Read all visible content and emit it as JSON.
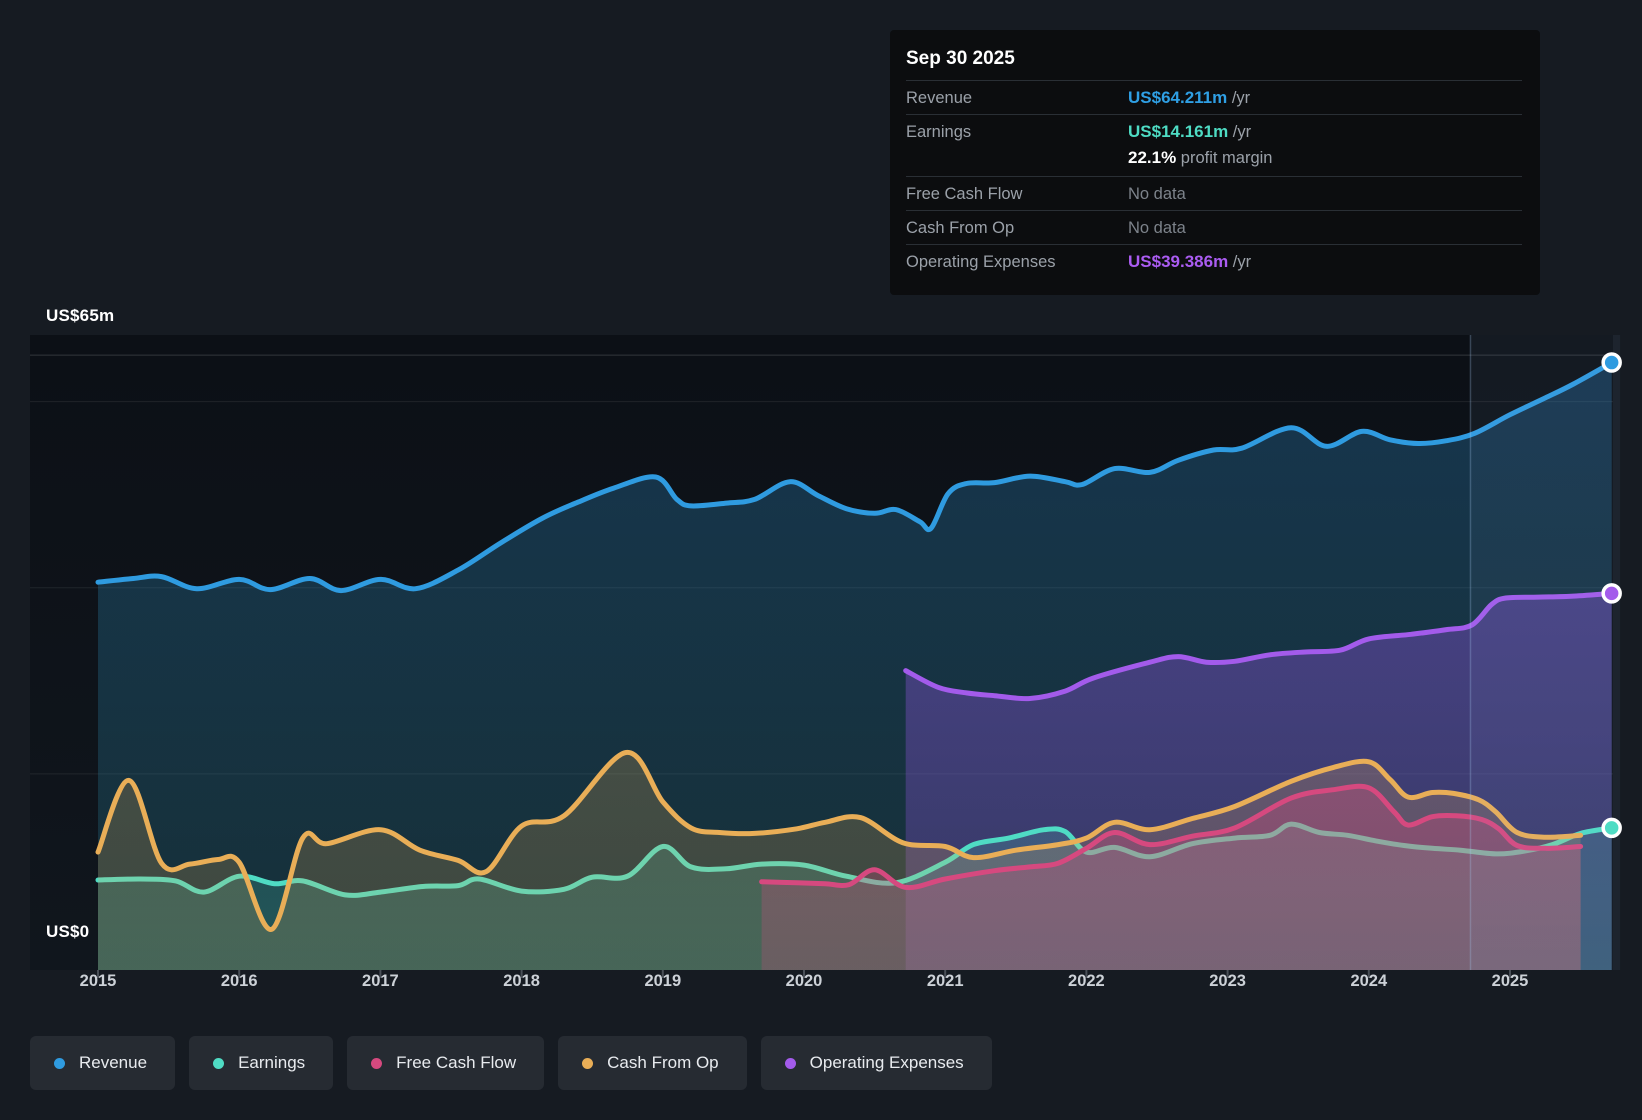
{
  "tooltip": {
    "date": "Sep 30 2025",
    "rows": [
      {
        "label": "Revenue",
        "value": "US$64.211m",
        "suffix": " /yr",
        "color": "#2f9fe4"
      },
      {
        "label": "Earnings",
        "value": "US$14.161m",
        "suffix": " /yr",
        "color": "#4edcc4",
        "sub_bold": "22.1%",
        "sub_text": " profit margin"
      },
      {
        "label": "Free Cash Flow",
        "value": "No data",
        "muted": true
      },
      {
        "label": "Cash From Op",
        "value": "No data",
        "muted": true
      },
      {
        "label": "Operating Expenses",
        "value": "US$39.386m",
        "suffix": " /yr",
        "color": "#ab5cf2"
      }
    ]
  },
  "axis": {
    "y_top_label": "US$65m",
    "y_zero_label": "US$0",
    "years": [
      "2015",
      "2016",
      "2017",
      "2018",
      "2019",
      "2020",
      "2021",
      "2022",
      "2023",
      "2024",
      "2025"
    ]
  },
  "legend": [
    {
      "label": "Revenue",
      "color": "#2f9be0"
    },
    {
      "label": "Earnings",
      "color": "#4fdcc4"
    },
    {
      "label": "Free Cash Flow",
      "color": "#d6497f"
    },
    {
      "label": "Cash From Op",
      "color": "#e9ae57"
    },
    {
      "label": "Operating Expenses",
      "color": "#a35beb"
    }
  ],
  "chart_data": {
    "type": "area",
    "title": "Revenue & Expenses Breakdown",
    "unit": "US$ millions per year",
    "ylim": [
      0,
      65
    ],
    "x_range": [
      2015,
      2025.78
    ],
    "gridline_values": [
      65,
      60,
      40,
      20
    ],
    "divider_x": 2024.72,
    "highlight_band": [
      2024.72,
      2025.78
    ],
    "legend_position": "bottom",
    "series": [
      {
        "name": "Revenue",
        "color": "#2f9be0",
        "fill_top": "rgba(42,125,186,0.34)",
        "fill_bottom": "rgba(48,150,170,0.20)",
        "end_marker": true,
        "points": [
          [
            2015.0,
            40.6
          ],
          [
            2015.25,
            41.0
          ],
          [
            2015.45,
            41.2
          ],
          [
            2015.7,
            39.9
          ],
          [
            2016.0,
            40.9
          ],
          [
            2016.22,
            39.8
          ],
          [
            2016.5,
            41.0
          ],
          [
            2016.72,
            39.7
          ],
          [
            2017.0,
            40.9
          ],
          [
            2017.25,
            39.9
          ],
          [
            2017.55,
            41.9
          ],
          [
            2017.85,
            44.8
          ],
          [
            2018.15,
            47.5
          ],
          [
            2018.4,
            49.2
          ],
          [
            2018.65,
            50.7
          ],
          [
            2018.95,
            51.9
          ],
          [
            2019.1,
            49.5
          ],
          [
            2019.2,
            48.8
          ],
          [
            2019.45,
            49.1
          ],
          [
            2019.65,
            49.5
          ],
          [
            2019.9,
            51.4
          ],
          [
            2020.1,
            49.9
          ],
          [
            2020.3,
            48.5
          ],
          [
            2020.5,
            48.0
          ],
          [
            2020.65,
            48.4
          ],
          [
            2020.82,
            47.1
          ],
          [
            2020.9,
            46.4
          ],
          [
            2021.02,
            50.1
          ],
          [
            2021.15,
            51.2
          ],
          [
            2021.35,
            51.3
          ],
          [
            2021.6,
            52.0
          ],
          [
            2021.85,
            51.4
          ],
          [
            2021.97,
            51.1
          ],
          [
            2022.2,
            52.8
          ],
          [
            2022.45,
            52.4
          ],
          [
            2022.65,
            53.7
          ],
          [
            2022.9,
            54.8
          ],
          [
            2023.1,
            55.0
          ],
          [
            2023.45,
            57.2
          ],
          [
            2023.7,
            55.2
          ],
          [
            2023.95,
            56.8
          ],
          [
            2024.15,
            55.9
          ],
          [
            2024.35,
            55.5
          ],
          [
            2024.55,
            55.8
          ],
          [
            2024.75,
            56.6
          ],
          [
            2025.0,
            58.6
          ],
          [
            2025.25,
            60.4
          ],
          [
            2025.45,
            61.9
          ],
          [
            2025.72,
            64.2
          ]
        ]
      },
      {
        "name": "Operating Expenses",
        "color": "#a35beb",
        "fill_top": "rgba(150,85,230,0.38)",
        "fill_bottom": "rgba(150,85,230,0.24)",
        "end_marker": true,
        "points": [
          [
            2020.72,
            31.1
          ],
          [
            2020.95,
            29.3
          ],
          [
            2021.15,
            28.7
          ],
          [
            2021.35,
            28.4
          ],
          [
            2021.6,
            28.1
          ],
          [
            2021.85,
            28.9
          ],
          [
            2022.05,
            30.3
          ],
          [
            2022.45,
            32.0
          ],
          [
            2022.65,
            32.6
          ],
          [
            2022.85,
            32.0
          ],
          [
            2023.05,
            32.1
          ],
          [
            2023.3,
            32.8
          ],
          [
            2023.55,
            33.1
          ],
          [
            2023.8,
            33.3
          ],
          [
            2024.0,
            34.5
          ],
          [
            2024.3,
            35.0
          ],
          [
            2024.55,
            35.5
          ],
          [
            2024.73,
            36.0
          ],
          [
            2024.87,
            38.2
          ],
          [
            2024.97,
            38.9
          ],
          [
            2025.2,
            39.0
          ],
          [
            2025.45,
            39.1
          ],
          [
            2025.72,
            39.4
          ]
        ]
      },
      {
        "name": "Earnings",
        "color": "#4fdcc4",
        "fill_top": "rgba(79,220,196,0.18)",
        "fill_bottom": "rgba(79,220,196,0.22)",
        "end_marker": true,
        "points": [
          [
            2015.0,
            8.6
          ],
          [
            2015.3,
            8.7
          ],
          [
            2015.55,
            8.5
          ],
          [
            2015.75,
            7.3
          ],
          [
            2016.0,
            9.0
          ],
          [
            2016.25,
            8.2
          ],
          [
            2016.45,
            8.5
          ],
          [
            2016.75,
            7.0
          ],
          [
            2017.0,
            7.3
          ],
          [
            2017.3,
            7.9
          ],
          [
            2017.55,
            8.0
          ],
          [
            2017.7,
            8.7
          ],
          [
            2018.0,
            7.4
          ],
          [
            2018.3,
            7.6
          ],
          [
            2018.5,
            8.9
          ],
          [
            2018.75,
            9.0
          ],
          [
            2019.0,
            12.2
          ],
          [
            2019.2,
            10.0
          ],
          [
            2019.45,
            9.8
          ],
          [
            2019.7,
            10.3
          ],
          [
            2020.0,
            10.2
          ],
          [
            2020.3,
            9.0
          ],
          [
            2020.65,
            8.3
          ],
          [
            2021.0,
            10.5
          ],
          [
            2021.2,
            12.4
          ],
          [
            2021.45,
            13.1
          ],
          [
            2021.7,
            14.0
          ],
          [
            2021.85,
            13.8
          ],
          [
            2022.0,
            11.6
          ],
          [
            2022.2,
            12.1
          ],
          [
            2022.45,
            11.1
          ],
          [
            2022.75,
            12.5
          ],
          [
            2023.05,
            13.1
          ],
          [
            2023.3,
            13.4
          ],
          [
            2023.45,
            14.6
          ],
          [
            2023.65,
            13.7
          ],
          [
            2023.85,
            13.4
          ],
          [
            2024.05,
            12.8
          ],
          [
            2024.25,
            12.3
          ],
          [
            2024.45,
            12.0
          ],
          [
            2024.65,
            11.8
          ],
          [
            2024.9,
            11.4
          ],
          [
            2025.1,
            11.7
          ],
          [
            2025.3,
            12.4
          ],
          [
            2025.5,
            13.6
          ],
          [
            2025.72,
            14.2
          ]
        ]
      },
      {
        "name": "Cash From Op",
        "color": "#e9ae57",
        "fill_top": "rgba(233,174,87,0.22)",
        "fill_bottom": "rgba(233,174,87,0.18)",
        "points": [
          [
            2015.0,
            11.6
          ],
          [
            2015.22,
            19.3
          ],
          [
            2015.45,
            10.4
          ],
          [
            2015.65,
            10.3
          ],
          [
            2015.85,
            10.8
          ],
          [
            2016.0,
            10.5
          ],
          [
            2016.23,
            3.3
          ],
          [
            2016.45,
            13.1
          ],
          [
            2016.62,
            12.5
          ],
          [
            2017.0,
            14.0
          ],
          [
            2017.28,
            11.8
          ],
          [
            2017.55,
            10.7
          ],
          [
            2017.75,
            9.5
          ],
          [
            2018.0,
            14.4
          ],
          [
            2018.3,
            15.5
          ],
          [
            2018.74,
            22.3
          ],
          [
            2019.0,
            17.0
          ],
          [
            2019.2,
            14.2
          ],
          [
            2019.4,
            13.7
          ],
          [
            2019.65,
            13.6
          ],
          [
            2019.95,
            14.1
          ],
          [
            2020.15,
            14.8
          ],
          [
            2020.4,
            15.3
          ],
          [
            2020.7,
            12.6
          ],
          [
            2021.0,
            12.2
          ],
          [
            2021.2,
            11.0
          ],
          [
            2021.5,
            11.8
          ],
          [
            2021.8,
            12.4
          ],
          [
            2022.0,
            13.1
          ],
          [
            2022.2,
            14.8
          ],
          [
            2022.45,
            14.0
          ],
          [
            2022.75,
            15.2
          ],
          [
            2023.05,
            16.5
          ],
          [
            2023.45,
            19.2
          ],
          [
            2023.75,
            20.7
          ],
          [
            2024.0,
            21.3
          ],
          [
            2024.15,
            19.4
          ],
          [
            2024.28,
            17.5
          ],
          [
            2024.45,
            18.0
          ],
          [
            2024.6,
            17.9
          ],
          [
            2024.78,
            17.2
          ],
          [
            2024.9,
            15.9
          ],
          [
            2025.05,
            13.7
          ],
          [
            2025.25,
            13.2
          ],
          [
            2025.5,
            13.4
          ]
        ]
      },
      {
        "name": "Free Cash Flow",
        "color": "#d6497f",
        "fill_top": "rgba(214,73,127,0.32)",
        "fill_bottom": "rgba(214,73,127,0.24)",
        "points": [
          [
            2019.7,
            8.4
          ],
          [
            2019.95,
            8.3
          ],
          [
            2020.15,
            8.2
          ],
          [
            2020.32,
            8.1
          ],
          [
            2020.5,
            9.7
          ],
          [
            2020.72,
            7.8
          ],
          [
            2021.0,
            8.7
          ],
          [
            2021.35,
            9.6
          ],
          [
            2021.6,
            10.0
          ],
          [
            2021.8,
            10.4
          ],
          [
            2022.0,
            12.0
          ],
          [
            2022.2,
            13.7
          ],
          [
            2022.45,
            12.4
          ],
          [
            2022.75,
            13.3
          ],
          [
            2023.05,
            14.2
          ],
          [
            2023.45,
            17.4
          ],
          [
            2023.75,
            18.3
          ],
          [
            2024.0,
            18.5
          ],
          [
            2024.18,
            15.9
          ],
          [
            2024.28,
            14.5
          ],
          [
            2024.45,
            15.4
          ],
          [
            2024.62,
            15.5
          ],
          [
            2024.8,
            15.1
          ],
          [
            2024.92,
            14.1
          ],
          [
            2025.05,
            12.3
          ],
          [
            2025.25,
            12.0
          ],
          [
            2025.5,
            12.2
          ]
        ]
      }
    ]
  }
}
